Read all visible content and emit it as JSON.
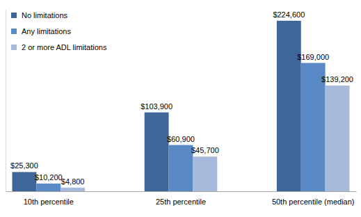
{
  "chart_data": {
    "type": "bar",
    "categories": [
      "10th percentile",
      "25th percentile",
      "50th percentile (median)"
    ],
    "series": [
      {
        "name": "No limitations",
        "color": "#3e6699",
        "values": [
          25300,
          103900,
          224600
        ],
        "value_labels": [
          "$25,300",
          "$103,900",
          "$224,600"
        ]
      },
      {
        "name": "Any limitations",
        "color": "#5a8ac6",
        "values": [
          10200,
          60900,
          169000
        ],
        "value_labels": [
          "$10,200",
          "$60,900",
          "$169,000"
        ]
      },
      {
        "name": "2 or more ADL limitations",
        "color": "#a8badb",
        "values": [
          4800,
          45700,
          139200
        ],
        "value_labels": [
          "$4,800",
          "$45,700",
          "$139,200"
        ]
      }
    ],
    "ylim": [
      0,
      240000
    ],
    "data_labels": true,
    "tick_labels": "x",
    "grid": false,
    "legend": "upper left"
  }
}
